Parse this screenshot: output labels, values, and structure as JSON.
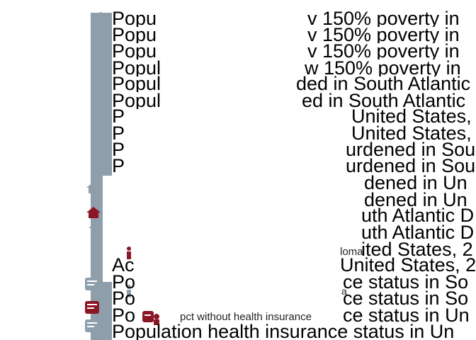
{
  "colors": {
    "rail": "#8f9eab",
    "accent": "#8b1625",
    "neutral": "#8f9eab"
  },
  "lines": [
    {
      "prefix": "Popu",
      "suffix": "v 150% poverty in"
    },
    {
      "prefix": "Popu",
      "suffix": "v 150% poverty in"
    },
    {
      "prefix": "Popu",
      "suffix": "v 150% poverty in"
    },
    {
      "prefix": "Popul",
      "suffix": "w 150% poverty in"
    },
    {
      "prefix": "Popul",
      "suffix": "ded in South Atlantic"
    },
    {
      "prefix": "Popul",
      "suffix": "ed in South Atlantic"
    },
    {
      "prefix": "P",
      "suffix": "United States,"
    },
    {
      "prefix": "P",
      "suffix": "United States,"
    },
    {
      "prefix": "P",
      "suffix": "urdened in Sou"
    },
    {
      "prefix": "P",
      "suffix": "urdened in Sou"
    },
    {
      "prefix": "",
      "suffix": "dened in Un"
    },
    {
      "prefix": "",
      "suffix": "dened in Un"
    },
    {
      "prefix": "",
      "suffix": "uth Atlantic D"
    },
    {
      "prefix": "",
      "suffix": "uth Atlantic D"
    },
    {
      "prefix": "",
      "suffix": "ited States, 2"
    },
    {
      "prefix": "Ac",
      "suffix": "United States, 2"
    },
    {
      "prefix": "Po",
      "suffix": "ce status in So"
    },
    {
      "prefix": "Po",
      "suffix": "ce status in So"
    },
    {
      "prefix": "Po",
      "suffix": "ce status in Un"
    },
    {
      "prefix": "Population health insurance status in Un",
      "suffix": ""
    }
  ],
  "small_labels": {
    "diploma": "loma",
    "second": "a",
    "pct_without_insurance": "pct without health insurance"
  },
  "icons": [
    {
      "name": "dot-icon",
      "color": "neutral"
    },
    {
      "name": "person-icon",
      "color": "neutral"
    },
    {
      "name": "person-icon",
      "color": "neutral"
    },
    {
      "name": "person-icon",
      "color": "neutral"
    },
    {
      "name": "house-icon",
      "color": "neutral"
    },
    {
      "name": "house-icon",
      "color": "accent"
    },
    {
      "name": "house-icon",
      "color": "neutral"
    },
    {
      "name": "person-icon",
      "color": "accent"
    },
    {
      "name": "person-icon",
      "color": "neutral"
    },
    {
      "name": "insurance-card-icon",
      "color": "neutral"
    },
    {
      "name": "insurance-card-icon",
      "color": "accent"
    },
    {
      "name": "insurance-card-icon",
      "color": "neutral"
    }
  ]
}
